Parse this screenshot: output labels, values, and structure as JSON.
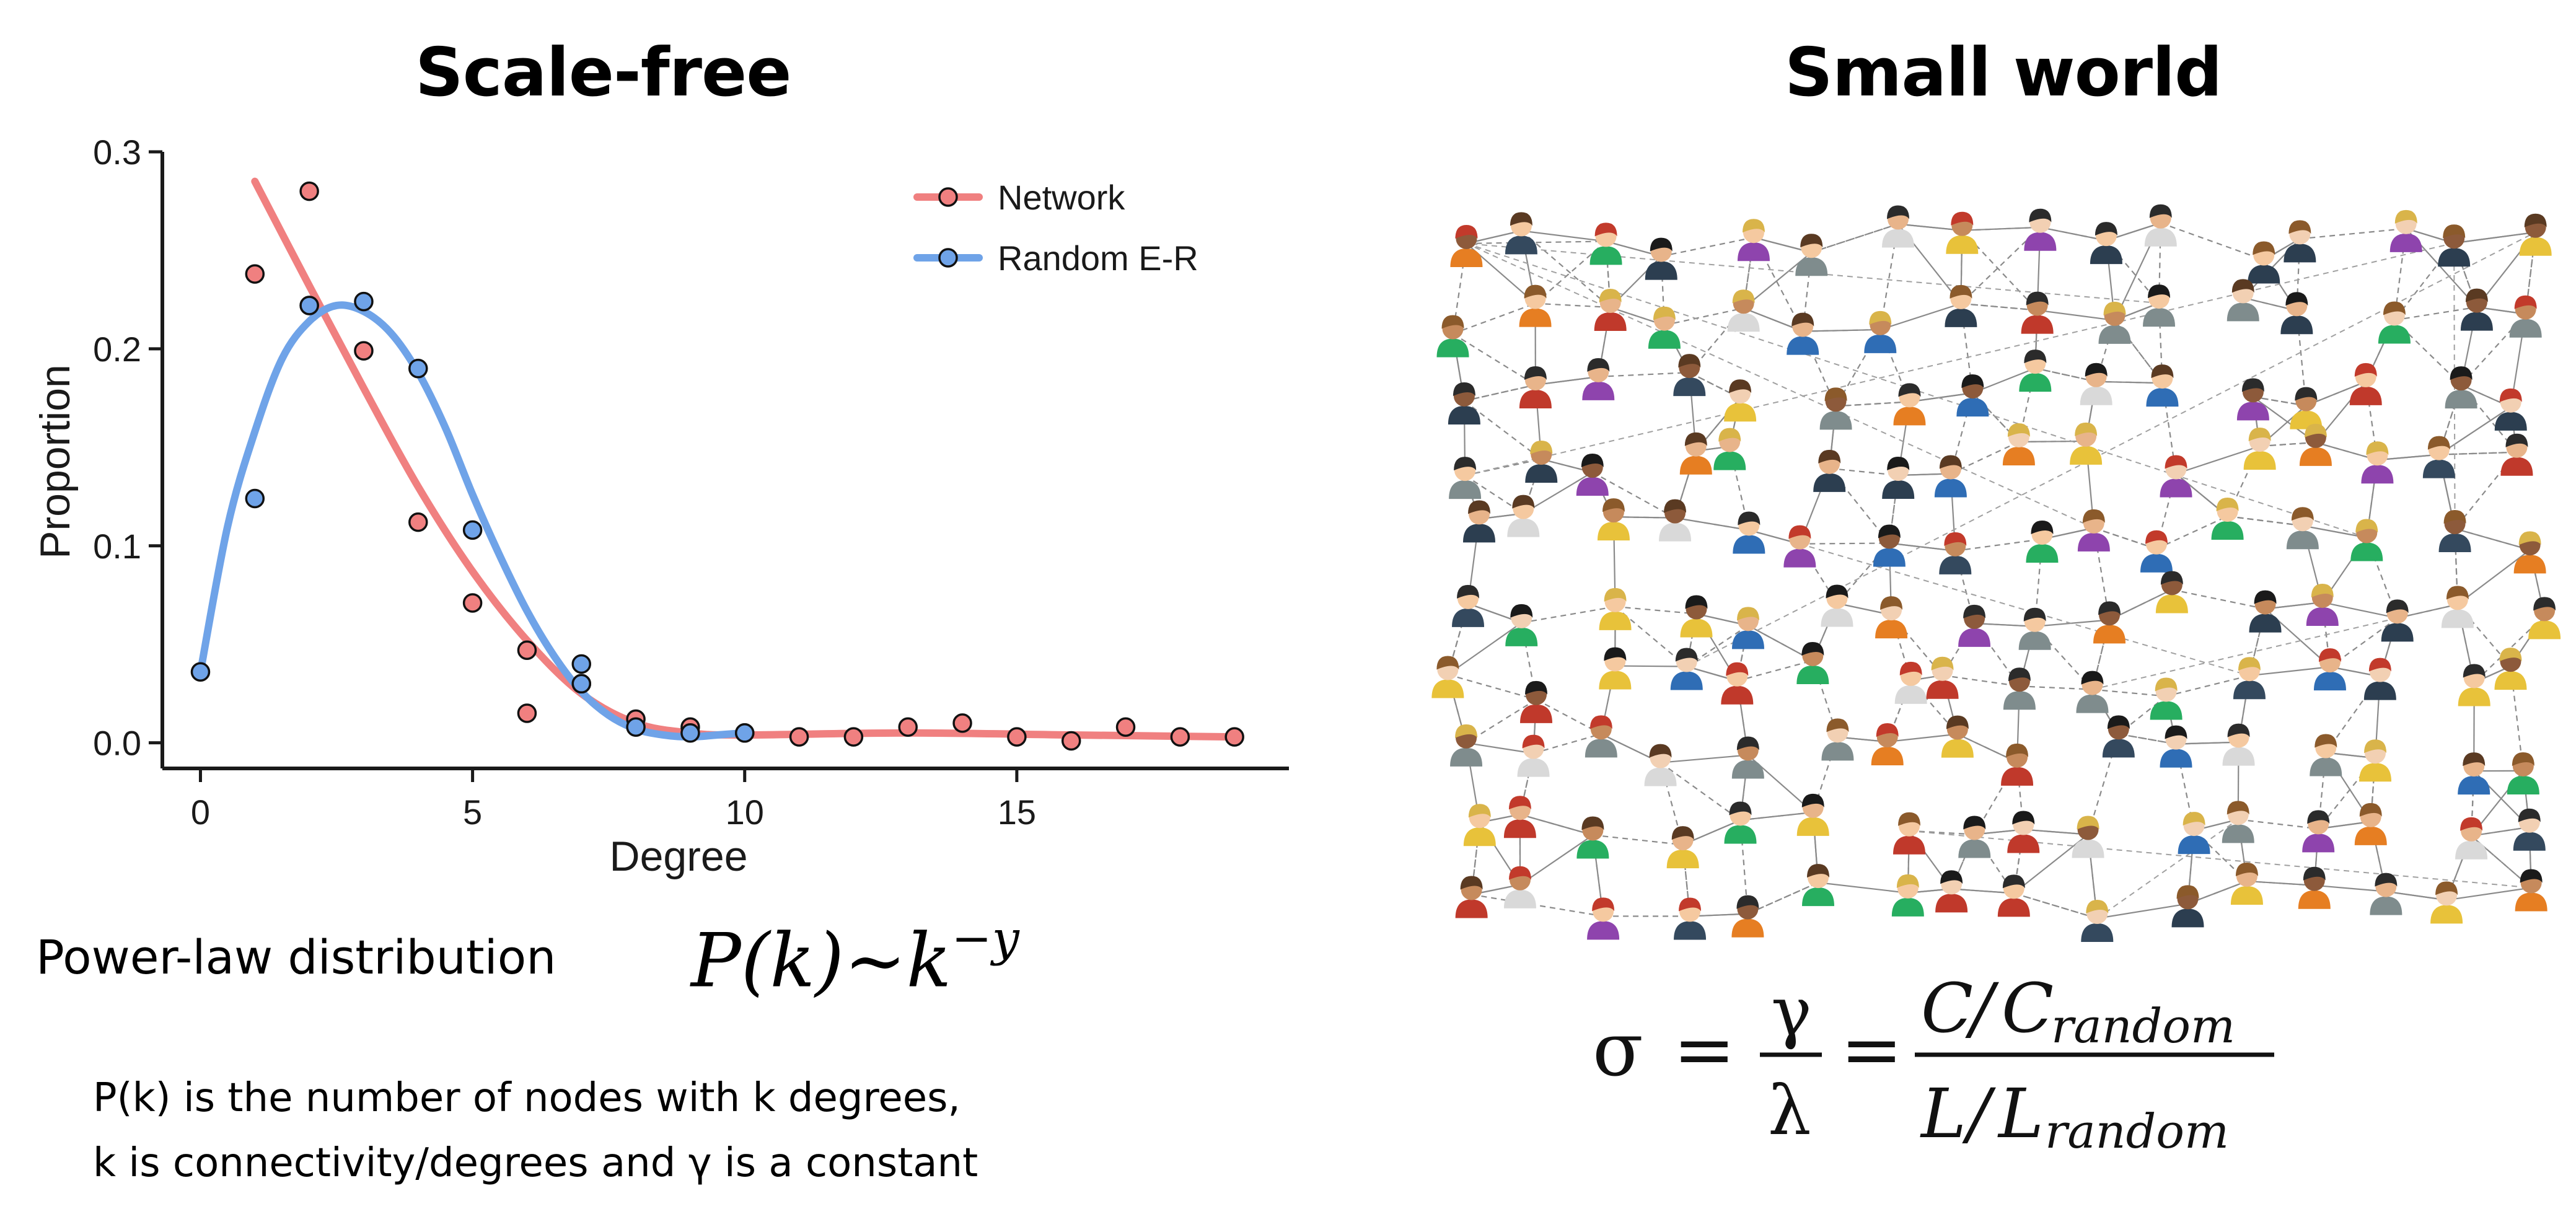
{
  "titles": {
    "left": "Scale-free",
    "right": "Small world"
  },
  "chart_data": {
    "type": "scatter",
    "xlabel": "Degree",
    "ylabel": "Proportion",
    "xlim": [
      -0.7,
      20
    ],
    "ylim": [
      -0.013,
      0.3
    ],
    "xticks": [
      0,
      5,
      10,
      15
    ],
    "yticks": [
      0.0,
      0.1,
      0.2,
      0.3
    ],
    "ytick_labels": [
      "0.0",
      "0.1",
      "0.2",
      "0.3"
    ],
    "grid": false,
    "legend_position": "top-right",
    "series": [
      {
        "name": "Network",
        "color": "#F08080",
        "points": [
          [
            1,
            0.238
          ],
          [
            2,
            0.28
          ],
          [
            2,
            0.222
          ],
          [
            3,
            0.199
          ],
          [
            4,
            0.112
          ],
          [
            5,
            0.071
          ],
          [
            6,
            0.047
          ],
          [
            6,
            0.015
          ],
          [
            7,
            0.03
          ],
          [
            8,
            0.012
          ],
          [
            9,
            0.008
          ],
          [
            10,
            0.005
          ],
          [
            11,
            0.003
          ],
          [
            12,
            0.003
          ],
          [
            13,
            0.008
          ],
          [
            14,
            0.01
          ],
          [
            15,
            0.003
          ],
          [
            16,
            0.001
          ],
          [
            17,
            0.008
          ],
          [
            18,
            0.003
          ],
          [
            19,
            0.003
          ]
        ],
        "fit": [
          [
            1,
            0.285
          ],
          [
            2,
            0.232
          ],
          [
            3,
            0.18
          ],
          [
            4,
            0.13
          ],
          [
            5,
            0.087
          ],
          [
            6,
            0.052
          ],
          [
            7,
            0.025
          ],
          [
            8,
            0.01
          ],
          [
            9,
            0.005
          ],
          [
            10,
            0.004
          ],
          [
            13,
            0.005
          ],
          [
            16,
            0.004
          ],
          [
            19,
            0.003
          ]
        ]
      },
      {
        "name": "Random E-R",
        "color": "#6FA3E8",
        "points": [
          [
            0,
            0.036
          ],
          [
            1,
            0.124
          ],
          [
            2,
            0.222
          ],
          [
            3,
            0.224
          ],
          [
            4,
            0.19
          ],
          [
            5,
            0.108
          ],
          [
            7,
            0.04
          ],
          [
            7,
            0.03
          ],
          [
            8,
            0.008
          ],
          [
            9,
            0.005
          ],
          [
            10,
            0.005
          ]
        ],
        "fit": [
          [
            0,
            0.036
          ],
          [
            0.5,
            0.11
          ],
          [
            1,
            0.158
          ],
          [
            1.5,
            0.195
          ],
          [
            2,
            0.214
          ],
          [
            2.5,
            0.222
          ],
          [
            3,
            0.219
          ],
          [
            3.5,
            0.208
          ],
          [
            4,
            0.188
          ],
          [
            4.5,
            0.16
          ],
          [
            5,
            0.126
          ],
          [
            5.5,
            0.095
          ],
          [
            6,
            0.067
          ],
          [
            6.5,
            0.044
          ],
          [
            7,
            0.026
          ],
          [
            7.5,
            0.014
          ],
          [
            8,
            0.007
          ],
          [
            8.5,
            0.004
          ],
          [
            9,
            0.003
          ],
          [
            9.5,
            0.004
          ],
          [
            10,
            0.005
          ]
        ]
      }
    ]
  },
  "power_law": {
    "label": "Power-law distribution",
    "formula_base": "P(k)~k",
    "formula_exp": "−y"
  },
  "notes": [
    "P(k) is the number of nodes with k degrees,",
    "k is connectivity/degrees and γ is a constant"
  ],
  "small_world_formula": {
    "sigma": "σ",
    "equals": "=",
    "gamma": "γ",
    "lambda": "λ",
    "C": "C",
    "C_random": "C",
    "L": "L",
    "L_random": "L",
    "sub": "random",
    "slash": "/"
  },
  "colors": {
    "network": "#F08080",
    "random": "#6FA3E8",
    "axis": "#1a1a1a"
  }
}
